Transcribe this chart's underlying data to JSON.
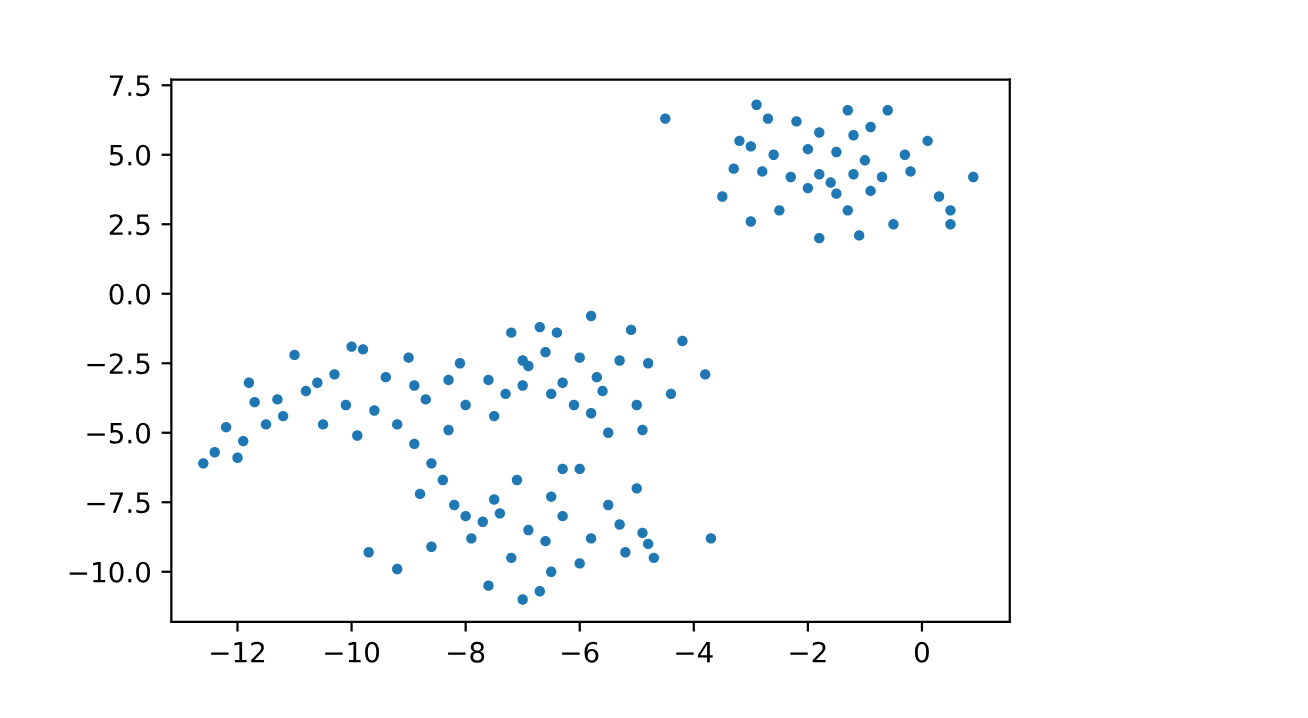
{
  "chart_data": {
    "type": "scatter",
    "marker": "circle",
    "grid": false,
    "xlim": [
      -13.16,
      1.54
    ],
    "ylim": [
      -11.8,
      7.7
    ],
    "xticks": [
      {
        "value": -12,
        "label": "−12"
      },
      {
        "value": -10,
        "label": "−10"
      },
      {
        "value": -8,
        "label": "−8"
      },
      {
        "value": -6,
        "label": "−6"
      },
      {
        "value": -4,
        "label": "−4"
      },
      {
        "value": -2,
        "label": "−2"
      },
      0
    ],
    "yticks": [
      {
        "value": -10,
        "label": "−10.0"
      },
      {
        "value": -7.5,
        "label": "−7.5"
      },
      {
        "value": -5,
        "label": "−5.0"
      },
      {
        "value": -2.5,
        "label": "−2.5"
      },
      {
        "value": 0,
        "label": "0.0"
      },
      {
        "value": 2.5,
        "label": "2.5"
      },
      {
        "value": 5,
        "label": "5.0"
      },
      {
        "value": 7.5,
        "label": "7.5"
      }
    ],
    "series": [
      {
        "color": "#1f77b4",
        "x": [
          -4.5,
          -2.9,
          -2.7,
          -1.3,
          -0.6,
          -0.9,
          -2.2,
          -3.2,
          -3.0,
          -1.8,
          -1.2,
          0.1,
          -0.3,
          -2.6,
          -2.0,
          -1.5,
          -1.0,
          -3.3,
          -2.8,
          -2.3,
          -1.8,
          -1.6,
          -1.2,
          -0.7,
          -0.2,
          0.9,
          -2.0,
          -1.5,
          -0.9,
          -3.5,
          -3.0,
          -1.8,
          -0.5,
          0.5,
          0.5,
          -1.1,
          -2.5,
          -1.3,
          0.3,
          -12.6,
          -12.4,
          -12.0,
          -12.2,
          -11.9,
          -11.5,
          -11.7,
          -11.8,
          -11.3,
          -11.0,
          -10.8,
          -10.5,
          -10.3,
          -10.0,
          -9.8,
          -10.1,
          -9.6,
          -9.4,
          -9.0,
          -9.2,
          -8.7,
          -8.3,
          -8.1,
          -8.9,
          -8.6,
          -8.4,
          -10.6,
          -11.2,
          -9.9,
          -8.9,
          -7.6,
          -7.2,
          -6.7,
          -6.4,
          -5.8,
          -5.1,
          -4.2,
          -3.8,
          -4.4,
          -5.0,
          -5.5,
          -5.8,
          -6.3,
          -6.0,
          -6.6,
          -7.0,
          -7.3,
          -6.5,
          -5.7,
          -5.3,
          -4.8,
          -6.9,
          -7.5,
          -8.0,
          -8.3,
          -6.1,
          -5.6,
          -4.9,
          -7.0,
          -9.7,
          -9.2,
          -8.8,
          -8.6,
          -8.2,
          -7.9,
          -7.5,
          -7.6,
          -7.0,
          -6.7,
          -6.5,
          -7.2,
          -6.9,
          -6.3,
          -6.0,
          -6.3,
          -5.5,
          -5.3,
          -4.9,
          -4.8,
          -4.7,
          -5.2,
          -5.0,
          -7.1,
          -6.5,
          -5.8,
          -7.7,
          -8.0,
          -6.0,
          -3.7,
          -6.6,
          -7.4
        ],
        "values": [
          6.3,
          6.8,
          6.3,
          6.6,
          6.6,
          6.0,
          6.2,
          5.5,
          5.3,
          5.8,
          5.7,
          5.5,
          5.0,
          5.0,
          5.2,
          5.1,
          4.8,
          4.5,
          4.4,
          4.2,
          4.3,
          4.0,
          4.3,
          4.2,
          4.4,
          4.2,
          3.8,
          3.6,
          3.7,
          3.5,
          2.6,
          2.0,
          2.5,
          2.5,
          3.0,
          2.1,
          3.0,
          3.0,
          3.5,
          -6.1,
          -5.7,
          -5.9,
          -4.8,
          -5.3,
          -4.7,
          -3.9,
          -3.2,
          -3.8,
          -2.2,
          -3.5,
          -4.7,
          -2.9,
          -1.9,
          -2.0,
          -4.0,
          -4.2,
          -3.0,
          -2.3,
          -4.7,
          -3.8,
          -4.9,
          -2.5,
          -5.4,
          -6.1,
          -6.7,
          -3.2,
          -4.4,
          -5.1,
          -3.3,
          -3.1,
          -1.4,
          -1.2,
          -1.4,
          -0.8,
          -1.3,
          -1.7,
          -2.9,
          -3.6,
          -4.0,
          -5.0,
          -4.3,
          -3.2,
          -2.3,
          -2.1,
          -3.3,
          -3.6,
          -3.6,
          -3.0,
          -2.4,
          -2.5,
          -2.6,
          -4.4,
          -4.0,
          -3.1,
          -4.0,
          -3.5,
          -4.9,
          -2.4,
          -9.3,
          -9.9,
          -7.2,
          -9.1,
          -7.6,
          -8.8,
          -7.4,
          -10.5,
          -11.0,
          -10.7,
          -10.0,
          -9.5,
          -8.5,
          -8.0,
          -6.3,
          -6.3,
          -7.6,
          -8.3,
          -8.6,
          -9.0,
          -9.5,
          -9.3,
          -7.0,
          -6.7,
          -7.3,
          -8.8,
          -8.2,
          -8.0,
          -9.7,
          -8.8,
          -8.9,
          -7.9
        ]
      }
    ]
  }
}
